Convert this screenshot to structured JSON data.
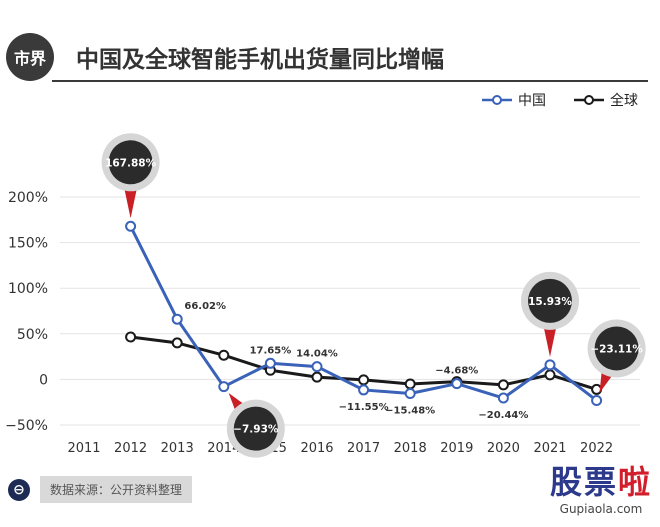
{
  "header": {
    "badge": "市界",
    "title": "中国及全球智能手机出货量同比增幅"
  },
  "legend": [
    {
      "name": "中国",
      "color": "#3a62b8"
    },
    {
      "name": "全球",
      "color": "#1a1a1a"
    }
  ],
  "chart_data": {
    "type": "line",
    "categories": [
      "2011",
      "2012",
      "2013",
      "2014",
      "2015",
      "2016",
      "2017",
      "2018",
      "2019",
      "2020",
      "2021",
      "2022"
    ],
    "y_ticks": [
      200,
      150,
      100,
      50,
      0,
      -50
    ],
    "y_tick_labels": [
      "200%",
      "150%",
      "100%",
      "50%",
      "0",
      "−50%"
    ],
    "ylim": [
      -55,
      210
    ],
    "series": [
      {
        "name": "中国",
        "color": "#3a62b8",
        "values": [
          null,
          167.88,
          66.02,
          -7.93,
          17.65,
          14.04,
          -11.55,
          -15.48,
          -4.68,
          -20.44,
          15.93,
          -23.11
        ]
      },
      {
        "name": "全球",
        "color": "#1a1a1a",
        "values": [
          null,
          46.5,
          40.0,
          26.5,
          10.0,
          2.5,
          -0.5,
          -5.0,
          -2.5,
          -6.0,
          5.0,
          -11.0
        ]
      }
    ],
    "data_labels": [
      {
        "index": 2,
        "text": "66.02%",
        "pos": "above"
      },
      {
        "index": 4,
        "text": "17.65%",
        "pos": "above"
      },
      {
        "index": 5,
        "text": "14.04%",
        "pos": "above"
      },
      {
        "index": 6,
        "text": "−11.55%",
        "pos": "below"
      },
      {
        "index": 7,
        "text": "−15.48%",
        "pos": "below"
      },
      {
        "index": 8,
        "text": "−4.68%",
        "pos": "above"
      },
      {
        "index": 9,
        "text": "−20.44%",
        "pos": "below"
      }
    ],
    "callouts": [
      {
        "index": 1,
        "text": "167.88%",
        "pos": "above"
      },
      {
        "index": 3,
        "text": "−7.93%",
        "pos": "below"
      },
      {
        "index": 10,
        "text": "15.93%",
        "pos": "above"
      },
      {
        "index": 11,
        "text": "−23.11%",
        "pos": "above"
      }
    ]
  },
  "footer": {
    "source_icon": "⊖",
    "source": "数据来源：公开资料整理"
  },
  "watermark": {
    "main": "股票",
    "accent": "啦",
    "url": "Gupiaola.com"
  }
}
